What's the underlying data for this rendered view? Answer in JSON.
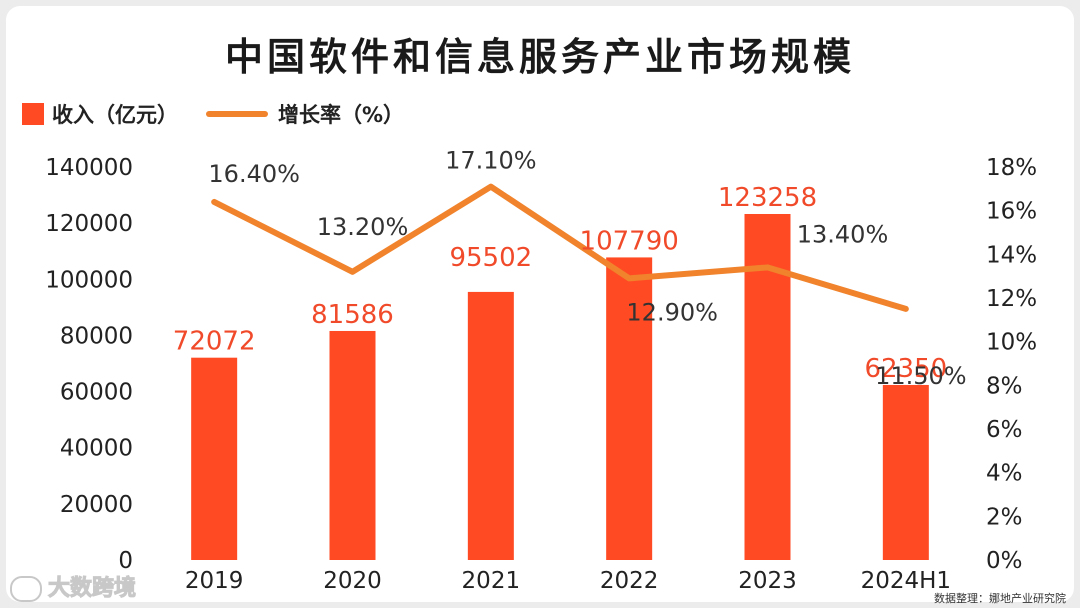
{
  "title": "中国软件和信息服务产业市场规模",
  "legend": {
    "bar_label": "收入（亿元）",
    "line_label": "增长率（%）"
  },
  "footer": {
    "left_brand": "大数跨境",
    "right_source": "数据整理：娜地产业研究院"
  },
  "colors": {
    "bar": "#ff4a23",
    "line": "#f0832c",
    "bar_label": "#f04a2a",
    "line_label": "#333333"
  },
  "chart_data": {
    "type": "bar",
    "categories": [
      "2019",
      "2020",
      "2021",
      "2022",
      "2023",
      "2024H1"
    ],
    "series": [
      {
        "name": "收入（亿元）",
        "type": "bar",
        "axis": "left",
        "values": [
          72072,
          81586,
          95502,
          107790,
          123258,
          62350
        ],
        "labels": [
          "72072",
          "81586",
          "95502",
          "107790",
          "123258",
          "62350"
        ]
      },
      {
        "name": "增长率（%）",
        "type": "line",
        "axis": "right",
        "values": [
          16.4,
          13.2,
          17.1,
          12.9,
          13.4,
          11.5
        ],
        "labels": [
          "16.40%",
          "13.20%",
          "17.10%",
          "12.90%",
          "13.40%",
          "11.50%"
        ]
      }
    ],
    "left_axis": {
      "ylim": [
        0,
        140000
      ],
      "ticks": [
        "0",
        "20000",
        "40000",
        "60000",
        "80000",
        "100000",
        "120000",
        "140000"
      ]
    },
    "right_axis": {
      "ylim": [
        0,
        18
      ],
      "ticks": [
        "0%",
        "2%",
        "4%",
        "6%",
        "8%",
        "10%",
        "12%",
        "14%",
        "16%",
        "18%"
      ]
    },
    "grid": false,
    "legend_position": "top-left"
  }
}
